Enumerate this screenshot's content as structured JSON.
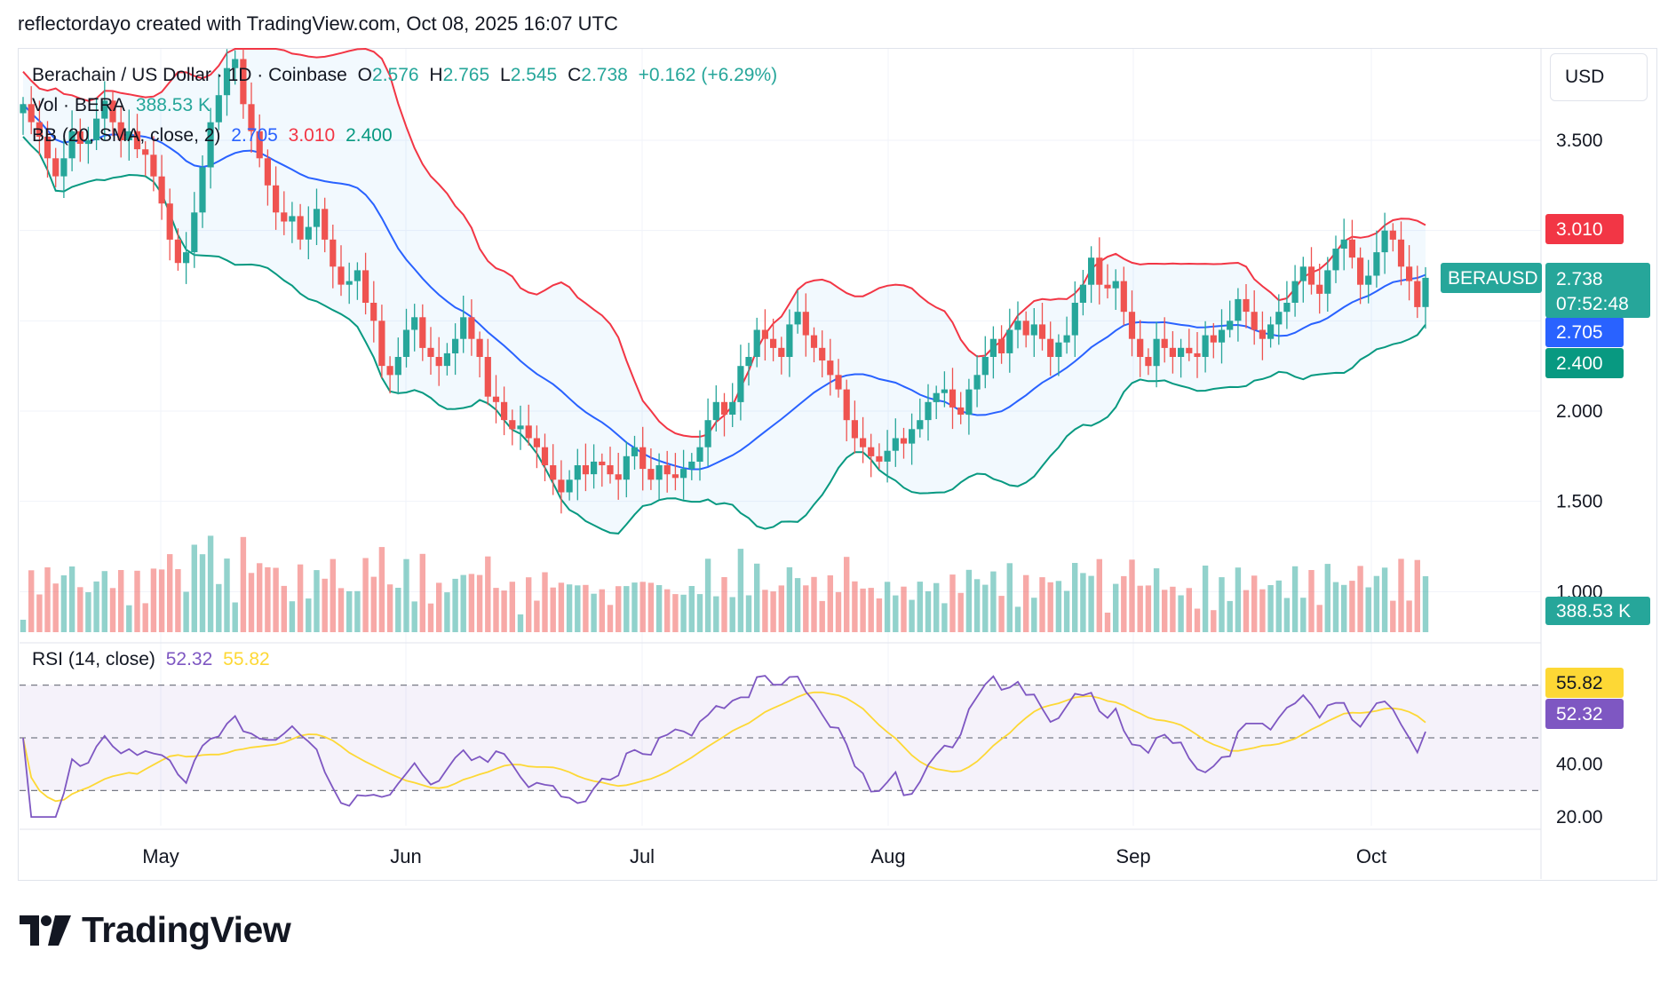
{
  "header": {
    "attribution": "reflectordayo created with TradingView.com, Oct 08, 2025 16:07 UTC"
  },
  "legend": {
    "symbol": "Berachain / US Dollar · 1D · Coinbase",
    "o_label": "O",
    "o_value": "2.576",
    "h_label": "H",
    "h_value": "2.765",
    "l_label": "L",
    "l_value": "2.545",
    "c_label": "C",
    "c_value": "2.738",
    "change": "+0.162 (+6.29%)",
    "vol_label": "Vol · BERA",
    "vol_value": "388.53 K",
    "bb_label": "BB (20, SMA, close, 2)",
    "bb_mid": "2.705",
    "bb_upper": "3.010",
    "bb_lower": "2.400",
    "rsi_label": "RSI (14, close)",
    "rsi_value": "52.32",
    "rsi_ma": "55.82"
  },
  "currency_button": "USD",
  "footer": {
    "brand": "TradingView"
  },
  "colors": {
    "up": "#26a69a",
    "down": "#ef5350",
    "bb_mid": "#2962ff",
    "bb_upper": "#f23645",
    "bb_lower": "#089981",
    "rsi": "#7e57c2",
    "rsi_ma": "#fdd835",
    "band_fill": "#2196f3"
  },
  "chart_data": [
    {
      "type": "candlestick",
      "title": "Berachain / US Dollar · 1D · Coinbase",
      "y_ticks": [
        "3.500",
        "3.010",
        "2.738",
        "2.705",
        "2.400",
        "2.000",
        "1.500",
        "1.000"
      ],
      "y_ticks_axis": [
        "3.500",
        "2.000",
        "1.500",
        "1.000"
      ],
      "x_ticks": [
        "May",
        "Jun",
        "Jul",
        "Aug",
        "Sep",
        "Oct"
      ],
      "ylim": [
        0.8,
        3.9
      ],
      "last_price_label": {
        "symbol": "BERAUSD",
        "price": "2.738",
        "countdown": "07:52:48"
      },
      "bands_labels": {
        "upper": "3.010",
        "mid": "2.705",
        "lower": "2.400"
      },
      "closes": [
        3.7,
        3.6,
        3.52,
        3.4,
        3.3,
        3.4,
        3.55,
        3.48,
        3.5,
        3.62,
        3.72,
        3.6,
        3.5,
        3.55,
        3.45,
        3.42,
        3.3,
        3.15,
        2.95,
        2.82,
        2.88,
        3.1,
        3.35,
        3.6,
        3.75,
        3.9,
        3.95,
        3.7,
        3.55,
        3.4,
        3.25,
        3.1,
        3.05,
        3.08,
        2.95,
        3.02,
        3.12,
        2.95,
        2.8,
        2.7,
        2.72,
        2.78,
        2.6,
        2.5,
        2.25,
        2.2,
        2.3,
        2.45,
        2.52,
        2.35,
        2.3,
        2.25,
        2.32,
        2.4,
        2.52,
        2.4,
        2.3,
        2.08,
        2.05,
        1.95,
        1.9,
        1.92,
        1.85,
        1.8,
        1.7,
        1.62,
        1.55,
        1.62,
        1.7,
        1.65,
        1.72,
        1.7,
        1.65,
        1.62,
        1.75,
        1.8,
        1.68,
        1.62,
        1.7,
        1.65,
        1.63,
        1.68,
        1.72,
        1.8,
        1.95,
        2.05,
        1.98,
        2.05,
        2.25,
        2.3,
        2.45,
        2.4,
        2.35,
        2.3,
        2.48,
        2.55,
        2.42,
        2.35,
        2.28,
        2.2,
        2.12,
        1.95,
        1.85,
        1.8,
        1.75,
        1.72,
        1.78,
        1.85,
        1.82,
        1.9,
        1.95,
        2.05,
        2.1,
        2.12,
        2.02,
        1.98,
        2.12,
        2.2,
        2.3,
        2.4,
        2.32,
        2.45,
        2.5,
        2.42,
        2.48,
        2.4,
        2.3,
        2.38,
        2.42,
        2.6,
        2.7,
        2.85,
        2.7,
        2.68,
        2.72,
        2.55,
        2.4,
        2.3,
        2.25,
        2.4,
        2.35,
        2.3,
        2.35,
        2.32,
        2.3,
        2.42,
        2.38,
        2.45,
        2.5,
        2.62,
        2.55,
        2.45,
        2.4,
        2.48,
        2.55,
        2.6,
        2.72,
        2.8,
        2.7,
        2.65,
        2.78,
        2.9,
        2.95,
        2.85,
        2.7,
        2.75,
        2.88,
        3.0,
        2.95,
        2.8,
        2.72,
        2.576,
        2.738
      ],
      "volume_last": "388.53 K",
      "rsi": {
        "ylim": [
          20,
          80
        ],
        "y_ticks": [
          "40.00",
          "20.00"
        ],
        "upper_band": 70,
        "lower_band": 30,
        "mid_band": 50,
        "value": 52.32,
        "ma_value": 55.82
      }
    }
  ]
}
